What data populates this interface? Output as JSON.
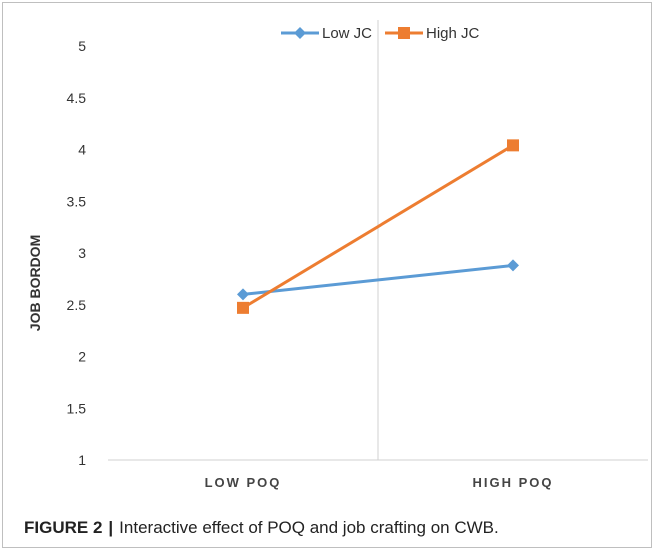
{
  "chart_data": {
    "type": "line",
    "categories": [
      "LOW POQ",
      "HIGH POQ"
    ],
    "series": [
      {
        "name": "Low JC",
        "values": [
          2.6,
          2.88
        ],
        "color": "#5b9bd5",
        "marker": "diamond"
      },
      {
        "name": "High JC",
        "values": [
          2.47,
          4.04
        ],
        "color": "#ed7d31",
        "marker": "square"
      }
    ],
    "ylabel": "JOB BORDOM",
    "xlabel": "",
    "ylim": [
      1,
      5
    ],
    "yticks": [
      "1",
      "1.5",
      "2",
      "2.5",
      "3",
      "3.5",
      "4",
      "4.5",
      "5"
    ],
    "legend_position": "top",
    "grid": false
  },
  "caption": {
    "label": "FIGURE 2",
    "separator": "|",
    "text": "Interactive effect of POQ and job crafting on CWB."
  }
}
